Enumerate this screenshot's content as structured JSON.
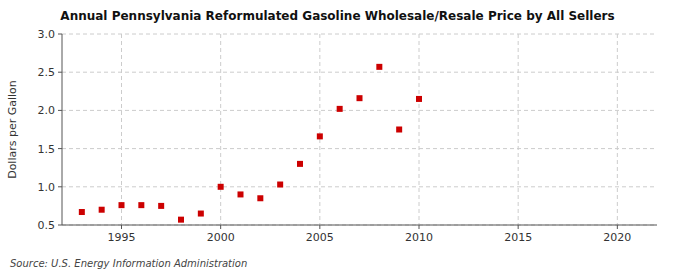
{
  "chart_data": {
    "type": "scatter",
    "title": "Annual Pennsylvania Reformulated Gasoline Wholesale/Resale Price by All Sellers",
    "ylabel": "Dollars per Gallon",
    "source": "Source: U.S. Energy Information Administration",
    "x": [
      1993,
      1994,
      1995,
      1996,
      1997,
      1998,
      1999,
      2000,
      2001,
      2002,
      2003,
      2004,
      2005,
      2006,
      2007,
      2008,
      2009,
      2010
    ],
    "values": [
      0.67,
      0.7,
      0.76,
      0.76,
      0.75,
      0.57,
      0.65,
      1.0,
      0.9,
      0.85,
      1.03,
      1.3,
      1.66,
      2.02,
      2.16,
      2.57,
      1.75,
      2.15
    ],
    "color": "#cc0000",
    "marker": "square",
    "xlim": [
      1992,
      2022
    ],
    "ylim": [
      0.5,
      3.0
    ],
    "xticks": [
      1995,
      2000,
      2005,
      2010,
      2015,
      2020
    ],
    "yticks": [
      0.5,
      {
        "value": 1,
        "label": "1.0"
      },
      1.5,
      {
        "value": 2,
        "label": "2.0"
      },
      2.5,
      {
        "value": 3,
        "label": "3.0"
      }
    ],
    "grid": true
  }
}
